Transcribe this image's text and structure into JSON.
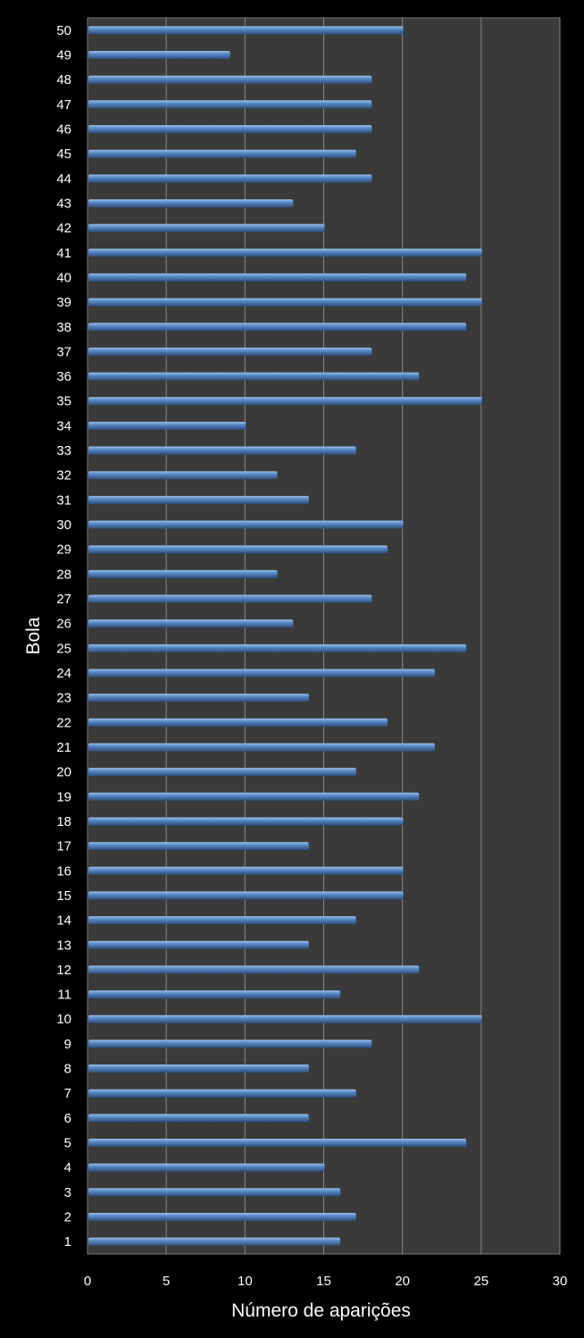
{
  "chart_data": {
    "type": "bar",
    "orientation": "horizontal",
    "xlabel": "Número de aparições",
    "ylabel": "Bola",
    "xlim": [
      0,
      30
    ],
    "xticks": [
      0,
      5,
      10,
      15,
      20,
      25,
      30
    ],
    "grid": true,
    "categories": [
      "1",
      "2",
      "3",
      "4",
      "5",
      "6",
      "7",
      "8",
      "9",
      "10",
      "11",
      "12",
      "13",
      "14",
      "15",
      "16",
      "17",
      "18",
      "19",
      "20",
      "21",
      "22",
      "23",
      "24",
      "25",
      "26",
      "27",
      "28",
      "29",
      "30",
      "31",
      "32",
      "33",
      "34",
      "35",
      "36",
      "37",
      "38",
      "39",
      "40",
      "41",
      "42",
      "43",
      "44",
      "45",
      "46",
      "47",
      "48",
      "49",
      "50"
    ],
    "values": [
      16,
      17,
      16,
      15,
      24,
      14,
      17,
      14,
      18,
      25,
      16,
      21,
      14,
      17,
      20,
      20,
      14,
      20,
      21,
      17,
      22,
      19,
      14,
      22,
      24,
      13,
      18,
      12,
      19,
      20,
      14,
      12,
      17,
      10,
      25,
      21,
      18,
      24,
      25,
      24,
      25,
      15,
      13,
      18,
      17,
      18,
      18,
      18,
      9,
      20
    ],
    "colors": {
      "background": "#000000",
      "plot_area": "#3a3a3a",
      "bar": "#4f81bd",
      "grid": "#8a8a8a"
    }
  }
}
